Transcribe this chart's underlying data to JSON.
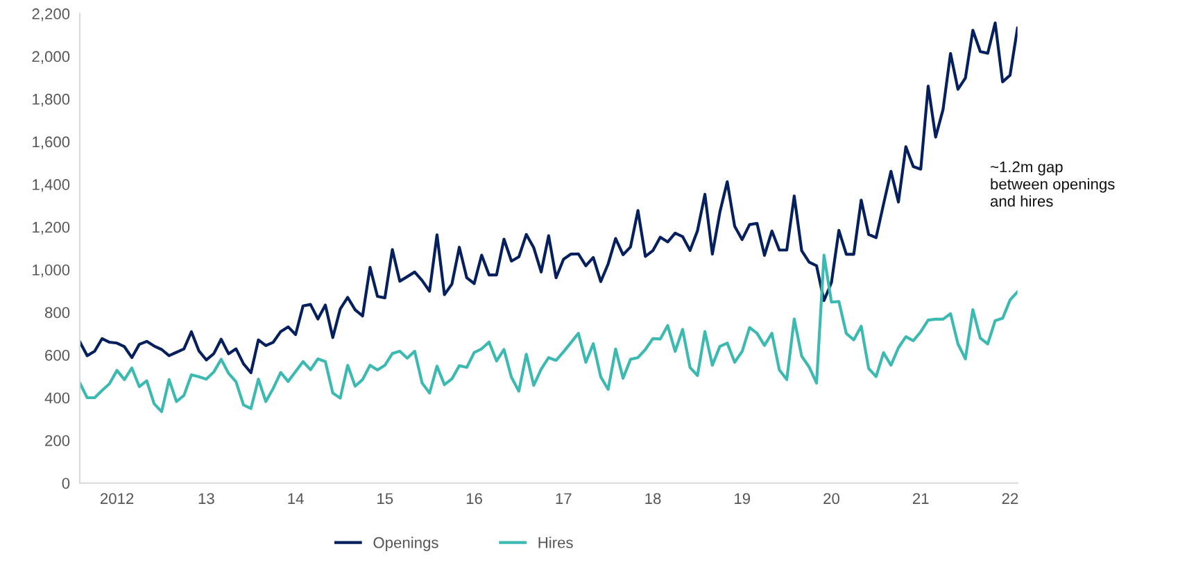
{
  "chart_data": {
    "type": "line",
    "categories": [
      null,
      null,
      null,
      null,
      null,
      "2012",
      null,
      null,
      null,
      null,
      null,
      null,
      null,
      null,
      null,
      null,
      null,
      "13",
      null,
      null,
      null,
      null,
      null,
      null,
      null,
      null,
      null,
      null,
      null,
      "14",
      null,
      null,
      null,
      null,
      null,
      null,
      null,
      null,
      null,
      null,
      null,
      "15",
      null,
      null,
      null,
      null,
      null,
      null,
      null,
      null,
      null,
      null,
      null,
      "16",
      null,
      null,
      null,
      null,
      null,
      null,
      null,
      null,
      null,
      null,
      null,
      "17",
      null,
      null,
      null,
      null,
      null,
      null,
      null,
      null,
      null,
      null,
      null,
      "18",
      null,
      null,
      null,
      null,
      null,
      null,
      null,
      null,
      null,
      null,
      null,
      "19",
      null,
      null,
      null,
      null,
      null,
      null,
      null,
      null,
      null,
      null,
      null,
      "20",
      null,
      null,
      null,
      null,
      null,
      null,
      null,
      null,
      null,
      null,
      null,
      "21",
      null,
      null,
      null,
      null,
      null,
      null,
      null,
      null,
      null,
      null,
      null,
      "22",
      null
    ],
    "series": [
      {
        "name": "Openings",
        "color": "#06205e",
        "values": [
          662,
          597,
          618,
          677,
          660,
          656,
          639,
          588,
          650,
          664,
          642,
          626,
          597,
          613,
          629,
          709,
          620,
          577,
          606,
          674,
          606,
          629,
          559,
          517,
          671,
          644,
          660,
          710,
          732,
          696,
          830,
          837,
          769,
          834,
          682,
          816,
          870,
          812,
          783,
          1011,
          875,
          868,
          1094,
          946,
          967,
          989,
          949,
          899,
          1163,
          883,
          932,
          1105,
          962,
          935,
          1068,
          975,
          975,
          1143,
          1040,
          1060,
          1165,
          1103,
          989,
          1159,
          962,
          1049,
          1073,
          1074,
          1018,
          1057,
          944,
          1027,
          1146,
          1070,
          1106,
          1277,
          1062,
          1089,
          1152,
          1130,
          1171,
          1155,
          1090,
          1182,
          1353,
          1073,
          1268,
          1412,
          1203,
          1141,
          1211,
          1217,
          1067,
          1181,
          1092,
          1092,
          1345,
          1089,
          1035,
          1018,
          855,
          940,
          1184,
          1072,
          1072,
          1326,
          1165,
          1150,
          1307,
          1461,
          1317,
          1576,
          1483,
          1471,
          1860,
          1621,
          1751,
          2013,
          1845,
          1898,
          2122,
          2022,
          2014,
          2156,
          1880,
          1911,
          2132
        ]
      },
      {
        "name": "Hires",
        "color": "#3cb9b0",
        "values": [
          469,
          400,
          400,
          434,
          466,
          528,
          485,
          539,
          452,
          479,
          371,
          335,
          485,
          382,
          411,
          507,
          498,
          487,
          520,
          580,
          514,
          474,
          366,
          349,
          487,
          382,
          444,
          518,
          476,
          523,
          569,
          531,
          582,
          569,
          422,
          398,
          552,
          454,
          485,
          552,
          530,
          552,
          607,
          618,
          585,
          618,
          469,
          422,
          548,
          461,
          488,
          550,
          542,
          612,
          629,
          661,
          572,
          626,
          496,
          431,
          604,
          458,
          534,
          588,
          575,
          615,
          658,
          702,
          566,
          653,
          498,
          439,
          628,
          491,
          580,
          588,
          626,
          677,
          675,
          738,
          617,
          720,
          542,
          504,
          710,
          552,
          640,
          656,
          566,
          617,
          729,
          702,
          645,
          702,
          530,
          485,
          769,
          595,
          544,
          469,
          1068,
          848,
          851,
          701,
          671,
          735,
          537,
          499,
          611,
          552,
          634,
          686,
          667,
          709,
          764,
          768,
          768,
          794,
          652,
          582,
          813,
          679,
          652,
          761,
          772,
          858,
          896
        ]
      }
    ],
    "ylim": [
      0,
      2200
    ],
    "yticks": [
      0,
      {
        "value": 200,
        "label": "200"
      },
      {
        "value": 400,
        "label": "400"
      },
      {
        "value": 600,
        "label": "600"
      },
      {
        "value": 800,
        "label": "800"
      },
      {
        "value": 1000,
        "label": "1,000"
      },
      {
        "value": 1200,
        "label": "1,200"
      },
      {
        "value": 1400,
        "label": "1,400"
      },
      {
        "value": 1600,
        "label": "1,600"
      },
      {
        "value": 1800,
        "label": "1,800"
      },
      {
        "value": 2000,
        "label": "2,000"
      },
      {
        "value": 2200,
        "label": "2,200"
      }
    ],
    "grid": false,
    "legend": "bottom",
    "marker": "none",
    "line_style": "solid",
    "annotations": [
      "~1.2m gap\nbetween openings\nand hires"
    ]
  }
}
